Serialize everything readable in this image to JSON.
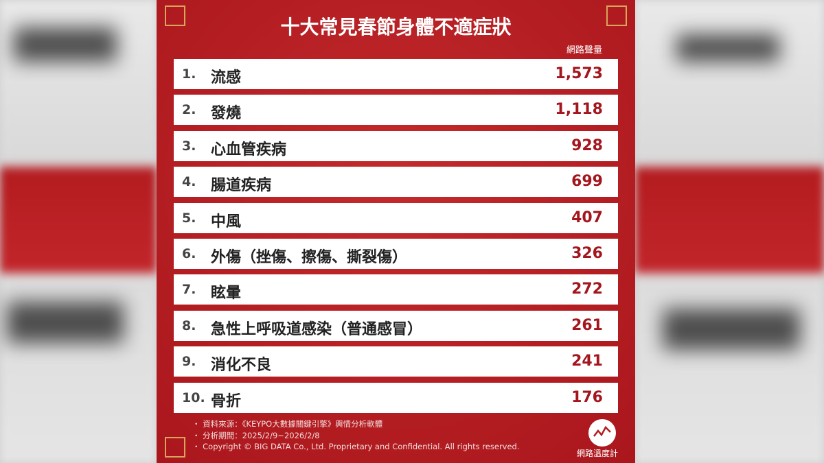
{
  "header": {
    "title": "十大常見春節身體不適症狀",
    "column_label": "網路聲量"
  },
  "table": {
    "rows": [
      [
        "1.",
        "流感",
        "1,573"
      ],
      [
        "2.",
        "發燒",
        "1,118"
      ],
      [
        "3.",
        "心血管疾病",
        "928"
      ],
      [
        "4.",
        "腸道疾病",
        "699"
      ],
      [
        "5.",
        "中風",
        "407"
      ],
      [
        "6.",
        "外傷（挫傷、擦傷、撕裂傷）",
        "326"
      ],
      [
        "7.",
        "眩暈",
        "272"
      ],
      [
        "8.",
        "急性上呼吸道感染（普通感冒）",
        "261"
      ],
      [
        "9.",
        "消化不良",
        "241"
      ],
      [
        "10.",
        "骨折",
        "176"
      ]
    ]
  },
  "footer": {
    "notes": [
      "資料來源：《KEYPO大數據關鍵引擎》輿情分析軟體",
      "分析期間：2025/2/9~2026/2/8",
      "Copyright © BIG DATA Co., Ltd. Proprietary and Confidential. All rights reserved."
    ],
    "logo": "網路溫度計"
  }
}
